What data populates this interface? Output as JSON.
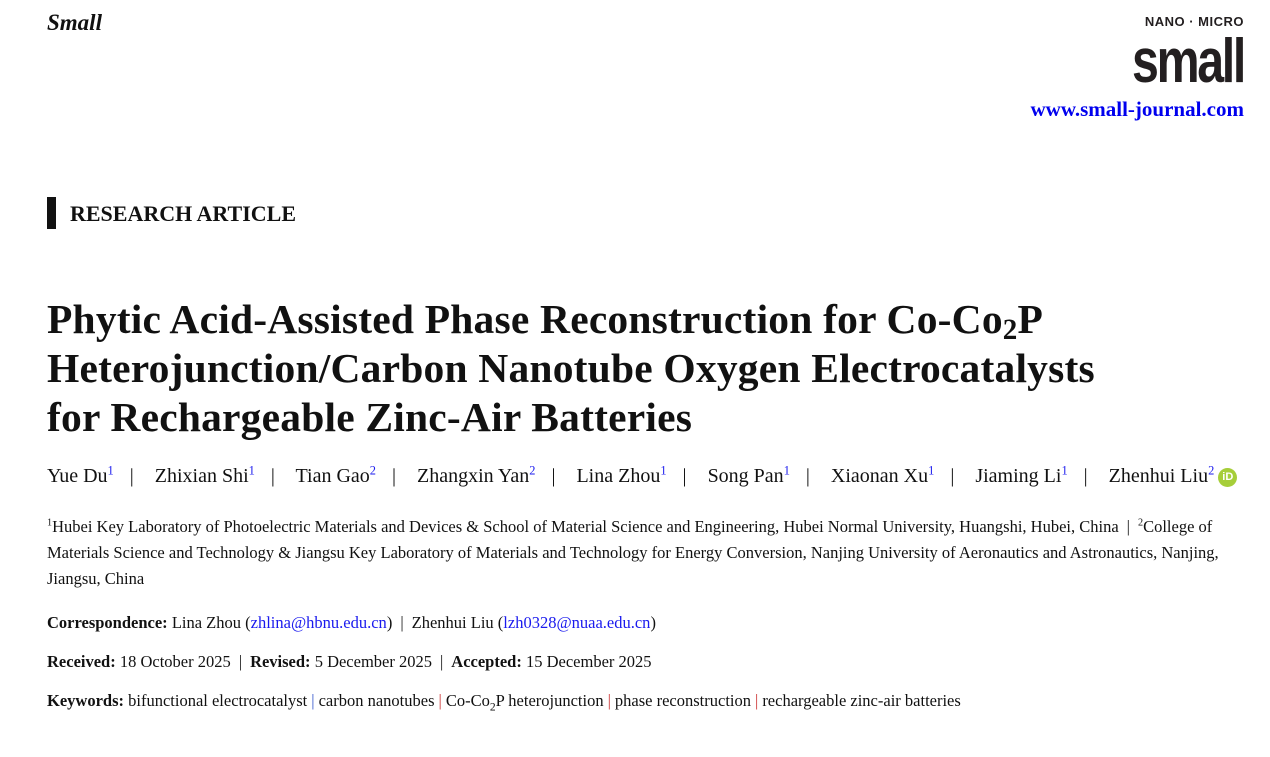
{
  "journal": "Small",
  "logo": {
    "top": "NANO · MICRO",
    "main": "small"
  },
  "url": "www.small-journal.com",
  "article_type": "RESEARCH ARTICLE",
  "title": {
    "line1_pre": "Phytic Acid-Assisted Phase Reconstruction for Co-Co",
    "line1_sub": "2",
    "line1_post": "P",
    "line2": "Heterojunction/Carbon Nanotube Oxygen Electrocatalysts",
    "line3": "for Rechargeable Zinc-Air Batteries"
  },
  "authors": [
    {
      "name": "Yue Du",
      "aff": "1"
    },
    {
      "name": "Zhixian Shi",
      "aff": "1"
    },
    {
      "name": "Tian Gao",
      "aff": "2"
    },
    {
      "name": "Zhangxin Yan",
      "aff": "2"
    },
    {
      "name": "Lina Zhou",
      "aff": "1"
    },
    {
      "name": "Song Pan",
      "aff": "1"
    },
    {
      "name": "Xiaonan Xu",
      "aff": "1"
    },
    {
      "name": "Jiaming Li",
      "aff": "1"
    },
    {
      "name": "Zhenhui Liu",
      "aff": "2"
    }
  ],
  "orcid_icon": "orcid-icon",
  "orcid_color": "#a6ce39",
  "affiliations": [
    {
      "num": "1",
      "text": "Hubei Key Laboratory of Photoelectric Materials and Devices & School of Material Science and Engineering, Hubei Normal University, Huangshi, Hubei, China"
    },
    {
      "num": "2",
      "text": "College of Materials Science and Technology & Jiangsu Key Laboratory of Materials and Technology for Energy Conversion, Nanjing University of Aeronautics and Astronautics, Nanjing, Jiangsu, China"
    }
  ],
  "correspondence": {
    "label": "Correspondence:",
    "people": [
      {
        "name": "Lina Zhou",
        "email": "zhlina@hbnu.edu.cn"
      },
      {
        "name": "Zhenhui Liu",
        "email": "lzh0328@nuaa.edu.cn"
      }
    ]
  },
  "dates": {
    "received_label": "Received:",
    "received": "18 October 2025",
    "revised_label": "Revised:",
    "revised": "5 December 2025",
    "accepted_label": "Accepted:",
    "accepted": "15 December 2025"
  },
  "keywords": {
    "label": "Keywords:",
    "k1": "bifunctional electrocatalyst",
    "k2": "carbon nanotubes",
    "k3_pre": "Co-Co",
    "k3_sub": "2",
    "k3_post": "P heterojunction",
    "k4": "phase reconstruction",
    "k5": "rechargeable zinc-air batteries"
  },
  "link_color": "#0000ee"
}
